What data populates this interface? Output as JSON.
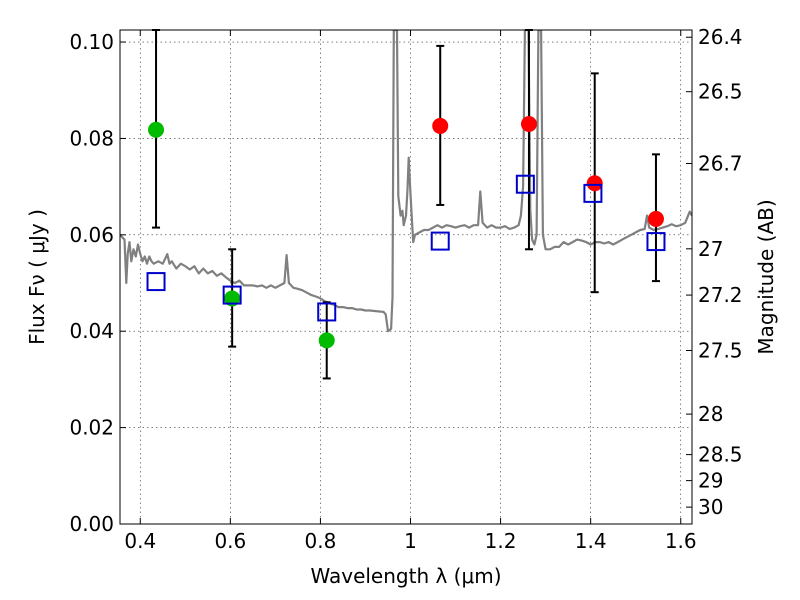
{
  "chart_data": {
    "type": "scatter",
    "xlabel": "Wavelength  λ (μm)",
    "ylabel": "Flux  Fν (  μJy )",
    "ylabel_right": "Magnitude (AB)",
    "xlim": [
      0.355,
      1.625
    ],
    "ylim": [
      0.0,
      0.1025
    ],
    "grid": true,
    "x_ticks": [
      {
        "value": 0.4,
        "label": "0.4"
      },
      {
        "value": 0.6,
        "label": "0.6"
      },
      {
        "value": 0.8,
        "label": "0.8"
      },
      {
        "value": 1.0,
        "label": "1"
      },
      {
        "value": 1.2,
        "label": "1.2"
      },
      {
        "value": 1.4,
        "label": "1.4"
      },
      {
        "value": 1.6,
        "label": "1.6"
      }
    ],
    "y_ticks": [
      {
        "value": 0.0,
        "label": "0.00"
      },
      {
        "value": 0.02,
        "label": "0.02"
      },
      {
        "value": 0.04,
        "label": "0.04"
      },
      {
        "value": 0.06,
        "label": "0.06"
      },
      {
        "value": 0.08,
        "label": "0.08"
      },
      {
        "value": 0.1,
        "label": "0.10"
      }
    ],
    "right_ticks": [
      {
        "flux": 0.101,
        "label": "26.4"
      },
      {
        "flux": 0.0897,
        "label": "26.5"
      },
      {
        "flux": 0.0748,
        "label": "26.7"
      },
      {
        "flux": 0.0571,
        "label": "27"
      },
      {
        "flux": 0.0475,
        "label": "27.2"
      },
      {
        "flux": 0.036,
        "label": "27.5"
      },
      {
        "flux": 0.0228,
        "label": "28"
      },
      {
        "flux": 0.0144,
        "label": "28.5"
      },
      {
        "flux": 0.009,
        "label": "29"
      },
      {
        "flux": 0.0035,
        "label": "30"
      }
    ],
    "series": [
      {
        "kind": "points",
        "color": "#00bb00",
        "points": [
          {
            "x": 0.435,
            "y": 0.0818,
            "ylo": 0.0615,
            "yhi": 0.1025
          },
          {
            "x": 0.604,
            "y": 0.0468,
            "ylo": 0.0368,
            "yhi": 0.057
          },
          {
            "x": 0.814,
            "y": 0.0381,
            "ylo": 0.0302,
            "yhi": 0.046
          }
        ]
      },
      {
        "kind": "points",
        "color": "#ff0000",
        "points": [
          {
            "x": 1.066,
            "y": 0.0826,
            "ylo": 0.0662,
            "yhi": 0.0992
          },
          {
            "x": 1.263,
            "y": 0.083,
            "ylo": 0.057,
            "yhi": 0.1025
          },
          {
            "x": 1.409,
            "y": 0.0707,
            "ylo": 0.0481,
            "yhi": 0.0935
          },
          {
            "x": 1.545,
            "y": 0.0633,
            "ylo": 0.0504,
            "yhi": 0.0767
          }
        ]
      },
      {
        "kind": "boxes",
        "color": "#0000cc",
        "points": [
          {
            "x": 0.435,
            "y": 0.0503
          },
          {
            "x": 0.604,
            "y": 0.0475
          },
          {
            "x": 0.814,
            "y": 0.044
          },
          {
            "x": 1.066,
            "y": 0.0587
          },
          {
            "x": 1.255,
            "y": 0.0705
          },
          {
            "x": 1.405,
            "y": 0.0686
          },
          {
            "x": 1.545,
            "y": 0.0586
          }
        ]
      },
      {
        "kind": "spectrum",
        "color": "#808080",
        "points": [
          [
            0.355,
            0.06
          ],
          [
            0.36,
            0.0595
          ],
          [
            0.365,
            0.059
          ],
          [
            0.369,
            0.05
          ],
          [
            0.372,
            0.056
          ],
          [
            0.376,
            0.0585
          ],
          [
            0.38,
            0.0545
          ],
          [
            0.385,
            0.057
          ],
          [
            0.39,
            0.0555
          ],
          [
            0.395,
            0.058
          ],
          [
            0.4,
            0.056
          ],
          [
            0.405,
            0.0545
          ],
          [
            0.41,
            0.0555
          ],
          [
            0.415,
            0.054
          ],
          [
            0.42,
            0.0555
          ],
          [
            0.425,
            0.0545
          ],
          [
            0.43,
            0.054
          ],
          [
            0.44,
            0.0545
          ],
          [
            0.45,
            0.054
          ],
          [
            0.46,
            0.056
          ],
          [
            0.465,
            0.054
          ],
          [
            0.47,
            0.0545
          ],
          [
            0.48,
            0.053
          ],
          [
            0.49,
            0.054
          ],
          [
            0.5,
            0.0535
          ],
          [
            0.51,
            0.0528
          ],
          [
            0.52,
            0.0535
          ],
          [
            0.53,
            0.052
          ],
          [
            0.54,
            0.053
          ],
          [
            0.55,
            0.052
          ],
          [
            0.56,
            0.0525
          ],
          [
            0.57,
            0.0515
          ],
          [
            0.58,
            0.052
          ],
          [
            0.59,
            0.0512
          ],
          [
            0.6,
            0.0505
          ],
          [
            0.61,
            0.05
          ],
          [
            0.62,
            0.0505
          ],
          [
            0.63,
            0.0495
          ],
          [
            0.64,
            0.0495
          ],
          [
            0.65,
            0.0495
          ],
          [
            0.66,
            0.0493
          ],
          [
            0.67,
            0.0495
          ],
          [
            0.68,
            0.049
          ],
          [
            0.69,
            0.0495
          ],
          [
            0.7,
            0.049
          ],
          [
            0.71,
            0.0495
          ],
          [
            0.72,
            0.05
          ],
          [
            0.725,
            0.0558
          ],
          [
            0.73,
            0.05
          ],
          [
            0.74,
            0.049
          ],
          [
            0.75,
            0.0488
          ],
          [
            0.76,
            0.0485
          ],
          [
            0.77,
            0.048
          ],
          [
            0.78,
            0.0475
          ],
          [
            0.79,
            0.0472
          ],
          [
            0.8,
            0.0468
          ],
          [
            0.81,
            0.0462
          ],
          [
            0.82,
            0.0458
          ],
          [
            0.83,
            0.0455
          ],
          [
            0.84,
            0.045
          ],
          [
            0.85,
            0.045
          ],
          [
            0.86,
            0.0448
          ],
          [
            0.87,
            0.0448
          ],
          [
            0.88,
            0.0445
          ],
          [
            0.89,
            0.0445
          ],
          [
            0.9,
            0.0443
          ],
          [
            0.91,
            0.0443
          ],
          [
            0.92,
            0.0442
          ],
          [
            0.94,
            0.044
          ],
          [
            0.945,
            0.0435
          ],
          [
            0.95,
            0.04
          ],
          [
            0.957,
            0.0405
          ],
          [
            0.96,
            0.047
          ],
          [
            0.963,
            0.1025
          ],
          [
            0.97,
            0.1025
          ],
          [
            0.973,
            0.068
          ],
          [
            0.978,
            0.064
          ],
          [
            0.982,
            0.065
          ],
          [
            0.985,
            0.062
          ],
          [
            0.99,
            0.064
          ],
          [
            0.993,
            0.069
          ],
          [
            0.996,
            0.076
          ],
          [
            0.999,
            0.07
          ],
          [
            1.002,
            0.065
          ],
          [
            1.006,
            0.0585
          ],
          [
            1.01,
            0.06
          ],
          [
            1.02,
            0.0605
          ],
          [
            1.03,
            0.061
          ],
          [
            1.04,
            0.061
          ],
          [
            1.05,
            0.0615
          ],
          [
            1.06,
            0.062
          ],
          [
            1.07,
            0.0615
          ],
          [
            1.08,
            0.062
          ],
          [
            1.09,
            0.0618
          ],
          [
            1.1,
            0.0615
          ],
          [
            1.11,
            0.0618
          ],
          [
            1.12,
            0.062
          ],
          [
            1.13,
            0.0615
          ],
          [
            1.14,
            0.062
          ],
          [
            1.15,
            0.062
          ],
          [
            1.155,
            0.069
          ],
          [
            1.16,
            0.0625
          ],
          [
            1.17,
            0.0615
          ],
          [
            1.18,
            0.062
          ],
          [
            1.19,
            0.0615
          ],
          [
            1.2,
            0.0615
          ],
          [
            1.21,
            0.0618
          ],
          [
            1.22,
            0.0612
          ],
          [
            1.23,
            0.0615
          ],
          [
            1.24,
            0.062
          ],
          [
            1.245,
            0.064
          ],
          [
            1.25,
            0.07
          ],
          [
            1.254,
            0.1025
          ],
          [
            1.262,
            0.1025
          ],
          [
            1.266,
            0.065
          ],
          [
            1.27,
            0.059
          ],
          [
            1.275,
            0.058
          ],
          [
            1.28,
            0.06
          ],
          [
            1.284,
            0.1025
          ],
          [
            1.29,
            0.1025
          ],
          [
            1.294,
            0.06
          ],
          [
            1.3,
            0.057
          ],
          [
            1.31,
            0.057
          ],
          [
            1.32,
            0.0575
          ],
          [
            1.33,
            0.0575
          ],
          [
            1.34,
            0.0585
          ],
          [
            1.35,
            0.058
          ],
          [
            1.36,
            0.0585
          ],
          [
            1.37,
            0.059
          ],
          [
            1.38,
            0.0588
          ],
          [
            1.39,
            0.0585
          ],
          [
            1.4,
            0.058
          ],
          [
            1.41,
            0.0585
          ],
          [
            1.42,
            0.0585
          ],
          [
            1.43,
            0.0582
          ],
          [
            1.44,
            0.0585
          ],
          [
            1.45,
            0.058
          ],
          [
            1.46,
            0.0585
          ],
          [
            1.47,
            0.059
          ],
          [
            1.48,
            0.0595
          ],
          [
            1.49,
            0.06
          ],
          [
            1.5,
            0.0605
          ],
          [
            1.51,
            0.061
          ],
          [
            1.52,
            0.0612
          ],
          [
            1.525,
            0.064
          ],
          [
            1.53,
            0.0615
          ],
          [
            1.54,
            0.061
          ],
          [
            1.55,
            0.0612
          ],
          [
            1.56,
            0.0615
          ],
          [
            1.57,
            0.0618
          ],
          [
            1.58,
            0.0622
          ],
          [
            1.59,
            0.0618
          ],
          [
            1.6,
            0.062
          ],
          [
            1.61,
            0.0625
          ],
          [
            1.62,
            0.0648
          ],
          [
            1.625,
            0.064
          ]
        ]
      }
    ]
  }
}
